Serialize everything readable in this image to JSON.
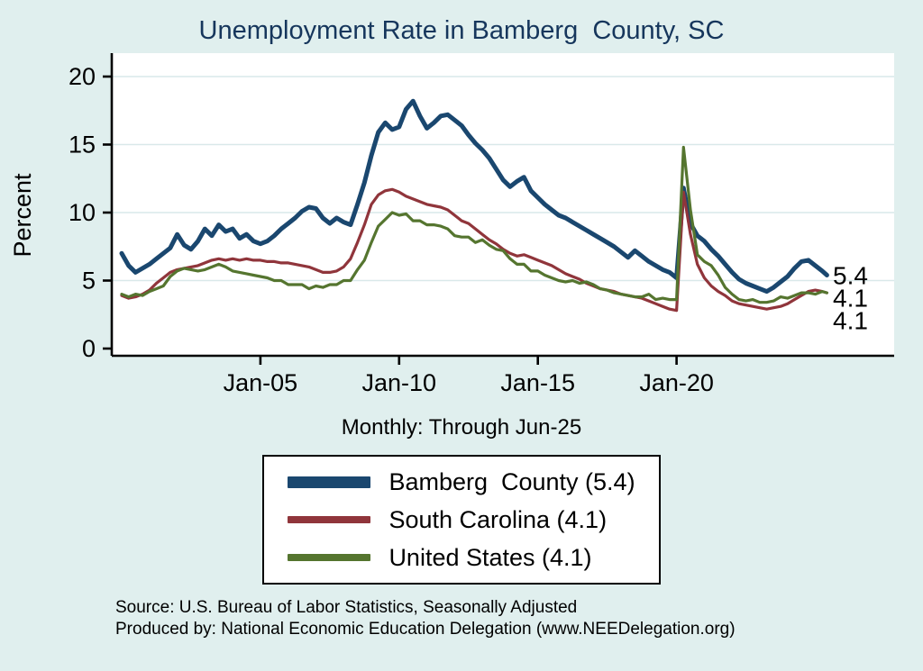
{
  "title": "Unemployment Rate in Bamberg  County, SC",
  "subtitle": "Monthly: Through Jun-25",
  "notes": [
    "Source: U.S. Bureau of Labor Statistics, Seasonally Adjusted",
    "Produced by: National Economic Education Delegation (www.NEEDelegation.org)"
  ],
  "colors": {
    "background": "#e0efee",
    "plot_background": "#ffffff",
    "grid": "#d9e8ea",
    "title": "#16365c",
    "axis": "#000000",
    "bamberg": "#1a476f",
    "south_carolina": "#90353b",
    "united_states": "#55752f"
  },
  "chart_data": {
    "type": "line",
    "title": "Unemployment Rate in Bamberg  County, SC",
    "subtitle": "Monthly: Through Jun-25",
    "xlabel": "",
    "ylabel": "Percent",
    "ylim": [
      0,
      20
    ],
    "yticks": [
      0,
      5,
      10,
      15,
      20
    ],
    "grid": "horizontal",
    "legend_position": "bottom-center-boxed",
    "x_unit": "decimal_year_monthly_series_sampled_quarterly",
    "x_ticks": [
      {
        "pos": 2005,
        "label": "Jan-05"
      },
      {
        "pos": 2010,
        "label": "Jan-10"
      },
      {
        "pos": 2015,
        "label": "Jan-15"
      },
      {
        "pos": 2020,
        "label": "Jan-20"
      }
    ],
    "x": [
      2000.0,
      2000.25,
      2000.5,
      2000.75,
      2001.0,
      2001.25,
      2001.5,
      2001.75,
      2002.0,
      2002.25,
      2002.5,
      2002.75,
      2003.0,
      2003.25,
      2003.5,
      2003.75,
      2004.0,
      2004.25,
      2004.5,
      2004.75,
      2005.0,
      2005.25,
      2005.5,
      2005.75,
      2006.0,
      2006.25,
      2006.5,
      2006.75,
      2007.0,
      2007.25,
      2007.5,
      2007.75,
      2008.0,
      2008.25,
      2008.5,
      2008.75,
      2009.0,
      2009.25,
      2009.5,
      2009.75,
      2010.0,
      2010.25,
      2010.5,
      2010.75,
      2011.0,
      2011.25,
      2011.5,
      2011.75,
      2012.0,
      2012.25,
      2012.5,
      2012.75,
      2013.0,
      2013.25,
      2013.5,
      2013.75,
      2014.0,
      2014.25,
      2014.5,
      2014.75,
      2015.0,
      2015.25,
      2015.5,
      2015.75,
      2016.0,
      2016.25,
      2016.5,
      2016.75,
      2017.0,
      2017.25,
      2017.5,
      2017.75,
      2018.0,
      2018.25,
      2018.5,
      2018.75,
      2019.0,
      2019.25,
      2019.5,
      2019.75,
      2020.0,
      2020.25,
      2020.5,
      2020.75,
      2021.0,
      2021.25,
      2021.5,
      2021.75,
      2022.0,
      2022.25,
      2022.5,
      2022.75,
      2023.0,
      2023.25,
      2023.5,
      2023.75,
      2024.0,
      2024.25,
      2024.5,
      2024.75,
      2025.0,
      2025.25,
      2025.42
    ],
    "series": [
      {
        "id": "bamberg",
        "name": "Bamberg  County (5.4)",
        "color": "#1a476f",
        "line_width": 5,
        "end_label": "5.4",
        "values": [
          7.0,
          6.1,
          5.6,
          5.9,
          6.2,
          6.6,
          7.0,
          7.4,
          8.4,
          7.6,
          7.3,
          7.9,
          8.8,
          8.3,
          9.1,
          8.6,
          8.8,
          8.1,
          8.4,
          7.9,
          7.7,
          7.9,
          8.3,
          8.8,
          9.2,
          9.6,
          10.1,
          10.4,
          10.3,
          9.6,
          9.2,
          9.6,
          9.3,
          9.1,
          10.6,
          12.2,
          14.2,
          15.9,
          16.6,
          16.1,
          16.3,
          17.6,
          18.2,
          17.1,
          16.2,
          16.6,
          17.1,
          17.2,
          16.8,
          16.4,
          15.7,
          15.1,
          14.6,
          14.0,
          13.2,
          12.4,
          11.9,
          12.3,
          12.6,
          11.6,
          11.1,
          10.6,
          10.2,
          9.8,
          9.6,
          9.3,
          9.0,
          8.7,
          8.4,
          8.1,
          7.8,
          7.5,
          7.1,
          6.7,
          7.2,
          6.8,
          6.4,
          6.1,
          5.8,
          5.6,
          5.2,
          11.8,
          9.2,
          8.3,
          7.9,
          7.3,
          6.8,
          6.2,
          5.6,
          5.1,
          4.8,
          4.6,
          4.4,
          4.2,
          4.5,
          4.9,
          5.3,
          5.9,
          6.4,
          6.5,
          6.1,
          5.7,
          5.4
        ]
      },
      {
        "id": "south-carolina",
        "name": "South Carolina (4.1)",
        "color": "#90353b",
        "line_width": 3.2,
        "end_label": "4.1",
        "values": [
          3.9,
          3.7,
          3.8,
          4.0,
          4.3,
          4.8,
          5.2,
          5.6,
          5.8,
          5.9,
          6.0,
          6.1,
          6.3,
          6.5,
          6.6,
          6.5,
          6.6,
          6.5,
          6.6,
          6.5,
          6.5,
          6.4,
          6.4,
          6.3,
          6.3,
          6.2,
          6.1,
          6.0,
          5.8,
          5.6,
          5.6,
          5.7,
          6.0,
          6.6,
          7.8,
          9.1,
          10.6,
          11.3,
          11.6,
          11.7,
          11.5,
          11.2,
          11.0,
          10.8,
          10.6,
          10.5,
          10.4,
          10.2,
          9.8,
          9.4,
          9.2,
          8.8,
          8.4,
          8.0,
          7.7,
          7.3,
          7.0,
          6.8,
          6.9,
          6.7,
          6.5,
          6.3,
          6.1,
          5.8,
          5.5,
          5.3,
          5.1,
          4.8,
          4.6,
          4.4,
          4.3,
          4.2,
          4.0,
          3.9,
          3.8,
          3.7,
          3.5,
          3.3,
          3.1,
          2.9,
          2.8,
          11.5,
          8.4,
          6.2,
          5.2,
          4.6,
          4.2,
          3.9,
          3.5,
          3.3,
          3.2,
          3.1,
          3.0,
          2.9,
          3.0,
          3.1,
          3.3,
          3.6,
          3.9,
          4.2,
          4.3,
          4.2,
          4.1
        ]
      },
      {
        "id": "united-states",
        "name": "United States (4.1)",
        "color": "#55752f",
        "line_width": 3.2,
        "end_label": "4.1",
        "values": [
          4.0,
          3.8,
          4.0,
          3.9,
          4.2,
          4.4,
          4.6,
          5.3,
          5.7,
          5.9,
          5.8,
          5.7,
          5.8,
          6.0,
          6.2,
          6.0,
          5.7,
          5.6,
          5.5,
          5.4,
          5.3,
          5.2,
          5.0,
          5.0,
          4.7,
          4.7,
          4.7,
          4.4,
          4.6,
          4.5,
          4.7,
          4.7,
          5.0,
          5.0,
          5.8,
          6.5,
          7.8,
          9.0,
          9.5,
          10.0,
          9.8,
          9.9,
          9.4,
          9.4,
          9.1,
          9.1,
          9.0,
          8.8,
          8.3,
          8.2,
          8.2,
          7.8,
          8.0,
          7.6,
          7.3,
          7.2,
          6.6,
          6.2,
          6.2,
          5.7,
          5.7,
          5.4,
          5.2,
          5.0,
          4.9,
          5.0,
          4.8,
          4.9,
          4.7,
          4.4,
          4.3,
          4.1,
          4.0,
          3.9,
          3.8,
          3.8,
          4.0,
          3.6,
          3.7,
          3.6,
          3.6,
          14.8,
          10.2,
          6.9,
          6.4,
          6.1,
          5.4,
          4.5,
          4.0,
          3.6,
          3.5,
          3.6,
          3.4,
          3.4,
          3.5,
          3.8,
          3.7,
          3.9,
          4.1,
          4.1,
          4.0,
          4.2,
          4.1
        ]
      }
    ]
  }
}
